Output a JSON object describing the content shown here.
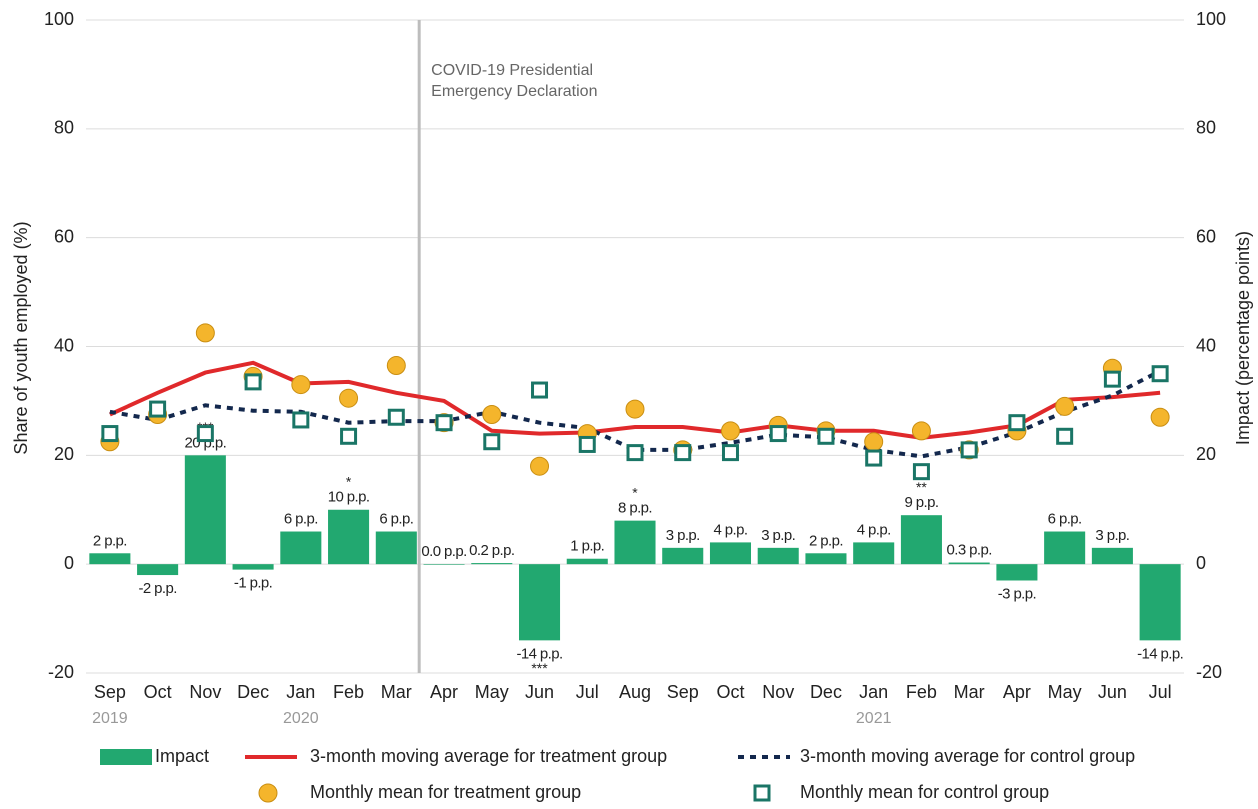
{
  "chart_data": {
    "type": "combo",
    "categories": [
      "Sep",
      "Oct",
      "Nov",
      "Dec",
      "Jan",
      "Feb",
      "Mar",
      "Apr",
      "May",
      "Jun",
      "Jul",
      "Aug",
      "Sep",
      "Oct",
      "Nov",
      "Dec",
      "Jan",
      "Feb",
      "Mar",
      "Apr",
      "May",
      "Jun",
      "Jul"
    ],
    "year_labels": [
      "2019",
      null,
      null,
      null,
      "2020",
      null,
      null,
      null,
      null,
      null,
      null,
      null,
      null,
      null,
      null,
      null,
      "2021",
      null,
      null,
      null,
      null,
      null,
      null
    ],
    "ylabel": "Share of youth employed (%)",
    "y2label": "Impact (percentage points)",
    "ylim": [
      -20,
      100
    ],
    "yticks": [
      -20,
      0,
      20,
      40,
      60,
      80,
      100
    ],
    "y2lim": [
      -20,
      100
    ],
    "y2ticks": [
      -20,
      0,
      20,
      40,
      60,
      80,
      100
    ],
    "grid": true,
    "annotation": "COVID-19 Presidential\nEmergency Declaration",
    "series": [
      {
        "name": "Impact",
        "kind": "bar",
        "axis": "y2",
        "color": "#22a870",
        "values": [
          2,
          -2,
          20,
          -1,
          6,
          10,
          6,
          0.0,
          0.2,
          -14,
          1,
          8,
          3,
          4,
          3,
          2,
          4,
          9,
          0.3,
          -3,
          6,
          3,
          -14
        ],
        "value_labels": [
          "2 p.p.",
          "-2 p.p.",
          "20 p.p.",
          "-1 p.p.",
          "6 p.p.",
          "10 p.p.",
          "6 p.p.",
          "0.0 p.p.",
          "0.2 p.p.",
          "-14 p.p.",
          "1 p.p.",
          "8 p.p.",
          "3 p.p.",
          "4 p.p.",
          "3 p.p.",
          "2 p.p.",
          "4 p.p.",
          "9 p.p.",
          "0.3 p.p.",
          "-3 p.p.",
          "6 p.p.",
          "3 p.p.",
          "-14 p.p."
        ],
        "significance": [
          null,
          null,
          "***",
          null,
          null,
          "*",
          null,
          null,
          null,
          "***",
          null,
          "*",
          null,
          null,
          null,
          null,
          null,
          "**",
          null,
          null,
          null,
          null,
          null
        ]
      },
      {
        "name": "3-month moving average for treatment group",
        "kind": "line",
        "color": "#e0292b",
        "dash": false,
        "values": [
          27.5,
          31.5,
          35.2,
          37,
          33.2,
          33.5,
          31.5,
          30,
          24.5,
          24,
          24.2,
          25.2,
          25.2,
          24.2,
          25.5,
          24.5,
          24.5,
          23.2,
          24.2,
          25.5,
          30.2,
          30.7,
          31.5
        ]
      },
      {
        "name": "3-month moving average for control group",
        "kind": "line",
        "color": "#13284d",
        "dash": true,
        "values": [
          28,
          26.5,
          29.2,
          28.2,
          28,
          26,
          26.3,
          26.3,
          28,
          26,
          25,
          21,
          21,
          22.3,
          23.8,
          23.3,
          21,
          19.8,
          21.5,
          24.2,
          28,
          31,
          35.5
        ]
      },
      {
        "name": "Monthly mean for treatment group",
        "kind": "scatter",
        "marker": "circle",
        "color": "#f4b52c",
        "values": [
          22.5,
          27.5,
          42.5,
          34.5,
          33,
          30.5,
          36.5,
          26,
          27.5,
          18,
          24,
          28.5,
          21,
          24.5,
          25.5,
          24.5,
          22.5,
          24.5,
          21,
          24.5,
          29,
          36,
          27
        ]
      },
      {
        "name": "Monthly mean for control group",
        "kind": "scatter",
        "marker": "square",
        "color": "#1a7566",
        "values": [
          24,
          28.5,
          24,
          33.5,
          26.5,
          23.5,
          27,
          26,
          22.5,
          32,
          22,
          20.5,
          20.5,
          20.5,
          24,
          23.5,
          19.5,
          17,
          21,
          26,
          23.5,
          34,
          35
        ]
      }
    ]
  }
}
